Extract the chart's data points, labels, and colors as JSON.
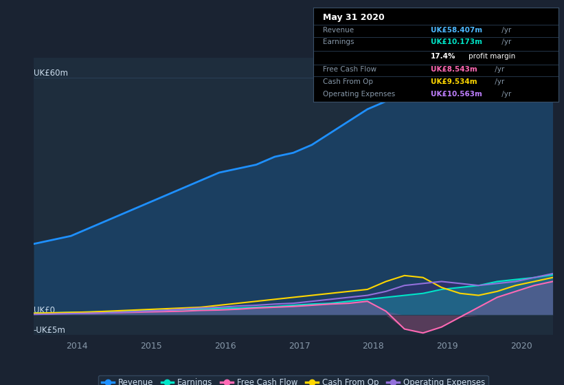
{
  "bg_color": "#1a2332",
  "plot_bg_color": "#1e2d3d",
  "grid_color": "#2a3f55",
  "title_box": {
    "date": "May 31 2020",
    "rows": [
      {
        "label": "Revenue",
        "value": "UK£58.407m",
        "value_color": "#4db8ff"
      },
      {
        "label": "Earnings",
        "value": "UK£10.173m",
        "value_color": "#00e5c8"
      },
      {
        "label": "",
        "value": "17.4% profit margin",
        "value_color": "#ffffff"
      },
      {
        "label": "Free Cash Flow",
        "value": "UK£8.543m",
        "value_color": "#ff69b4"
      },
      {
        "label": "Cash From Op",
        "value": "UK£9.534m",
        "value_color": "#ffd700"
      },
      {
        "label": "Operating Expenses",
        "value": "UK£10.563m",
        "value_color": "#bf7fff"
      }
    ]
  },
  "years": [
    2013.42,
    2013.67,
    2013.92,
    2014.17,
    2014.42,
    2014.67,
    2014.92,
    2015.17,
    2015.42,
    2015.67,
    2015.92,
    2016.17,
    2016.42,
    2016.67,
    2016.92,
    2017.17,
    2017.42,
    2017.67,
    2017.92,
    2018.17,
    2018.42,
    2018.67,
    2018.92,
    2019.17,
    2019.42,
    2019.67,
    2019.92,
    2020.17,
    2020.42
  ],
  "revenue": [
    18,
    19,
    20,
    22,
    24,
    26,
    28,
    30,
    32,
    34,
    36,
    37,
    38,
    40,
    41,
    43,
    46,
    49,
    52,
    54,
    56,
    57,
    57,
    57,
    57.5,
    58,
    58.5,
    58.5,
    58.4
  ],
  "earnings": [
    0.5,
    0.6,
    0.7,
    0.8,
    0.9,
    1.0,
    1.1,
    1.2,
    1.4,
    1.5,
    1.7,
    1.8,
    2.0,
    2.2,
    2.5,
    2.8,
    3.0,
    3.5,
    4.0,
    4.5,
    5.0,
    5.5,
    6.5,
    7.0,
    7.5,
    8.5,
    9.0,
    9.5,
    10.17
  ],
  "free_cash_flow": [
    0.3,
    0.4,
    0.5,
    0.5,
    0.6,
    0.7,
    0.8,
    0.9,
    1.0,
    1.2,
    1.3,
    1.5,
    1.8,
    2.0,
    2.2,
    2.5,
    2.8,
    3.0,
    3.5,
    1.0,
    -3.5,
    -4.5,
    -3.0,
    -0.5,
    2.0,
    4.5,
    6.0,
    7.5,
    8.5
  ],
  "cash_from_op": [
    0.5,
    0.6,
    0.7,
    0.8,
    1.0,
    1.2,
    1.4,
    1.6,
    1.8,
    2.0,
    2.5,
    3.0,
    3.5,
    4.0,
    4.5,
    5.0,
    5.5,
    6.0,
    6.5,
    8.5,
    10.0,
    9.5,
    7.0,
    5.5,
    5.0,
    6.0,
    7.5,
    8.5,
    9.5
  ],
  "op_expenses": [
    0.2,
    0.3,
    0.4,
    0.5,
    0.6,
    0.8,
    1.0,
    1.2,
    1.5,
    1.8,
    2.0,
    2.3,
    2.5,
    2.8,
    3.0,
    3.5,
    4.0,
    4.5,
    5.0,
    6.0,
    7.5,
    8.0,
    8.5,
    8.0,
    7.5,
    8.0,
    8.5,
    9.5,
    10.5
  ],
  "revenue_color": "#1e90ff",
  "earnings_color": "#00e5c8",
  "fcf_color": "#ff69b4",
  "cashop_color": "#ffd700",
  "opex_color": "#9370db",
  "revenue_fill_color": "#1a4f80",
  "earnings_fill_color": "#004d40",
  "fcf_fill_color": "#8b0057",
  "opex_fill_color": "#4b2080",
  "ylim_min": -5,
  "ylim_max": 65,
  "xtick_labels": [
    "2014",
    "2015",
    "2016",
    "2017",
    "2018",
    "2019",
    "2020"
  ],
  "legend_items": [
    {
      "label": "Revenue",
      "color": "#1e90ff"
    },
    {
      "label": "Earnings",
      "color": "#00e5c8"
    },
    {
      "label": "Free Cash Flow",
      "color": "#ff69b4"
    },
    {
      "label": "Cash From Op",
      "color": "#ffd700"
    },
    {
      "label": "Operating Expenses",
      "color": "#9370db"
    }
  ],
  "text_color": "#8899aa",
  "text_color_light": "#ccddee"
}
